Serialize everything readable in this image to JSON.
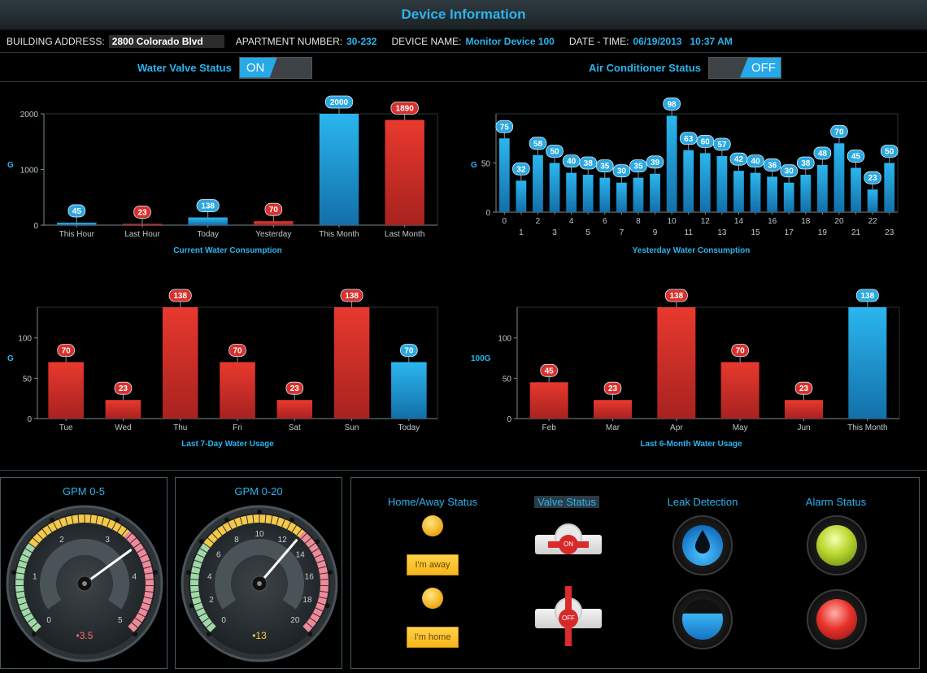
{
  "header": {
    "title": "Device Information"
  },
  "info": {
    "address_label": "BUILDING ADDRESS:",
    "address_value": "2800 Colorado Blvd",
    "apt_label": "APARTMENT NUMBER:",
    "apt_value": "30-232",
    "device_label": "DEVICE NAME:",
    "device_value": "Monitor Device 100",
    "datetime_label": "DATE - TIME:",
    "datetime_value": "06/19/2013   10:37 AM"
  },
  "toggles": {
    "water_valve_label": "Water Valve Status",
    "water_valve_value": "ON",
    "ac_label": "Air Conditioner Status",
    "ac_value": "OFF"
  },
  "colors": {
    "accent": "#2ab4ee",
    "blue_bar": "#1f9fd8",
    "red_bar": "#d8302c"
  },
  "chart_data": [
    {
      "id": "current",
      "type": "bar",
      "title": "Current Water Consumption",
      "ylabel": "G",
      "ylim": [
        0,
        2000
      ],
      "yticks": [
        0,
        1000,
        2000
      ],
      "categories": [
        "This Hour",
        "Last Hour",
        "Today",
        "Yesterday",
        "This Month",
        "Last Month"
      ],
      "values": [
        45,
        23,
        138,
        70,
        2000,
        1890
      ],
      "colors": [
        "blue",
        "red",
        "blue",
        "red",
        "blue",
        "red"
      ]
    },
    {
      "id": "yesterday",
      "type": "bar",
      "title": "Yesterday Water Consumption",
      "ylabel": "G",
      "ylim": [
        0,
        100
      ],
      "yticks": [
        0,
        50
      ],
      "categories": [
        "0",
        "1",
        "2",
        "3",
        "4",
        "5",
        "6",
        "7",
        "8",
        "9",
        "10",
        "11",
        "12",
        "13",
        "14",
        "15",
        "16",
        "17",
        "18",
        "19",
        "20",
        "21",
        "22",
        "23"
      ],
      "values": [
        75,
        32,
        58,
        50,
        40,
        38,
        35,
        30,
        35,
        39,
        98,
        63,
        60,
        57,
        42,
        40,
        36,
        30,
        38,
        48,
        70,
        45,
        23,
        50
      ],
      "colors": [
        "blue"
      ]
    },
    {
      "id": "week",
      "type": "bar",
      "title": "Last 7-Day Water Usage",
      "ylabel": "G",
      "ylim": [
        0,
        138
      ],
      "yticks": [
        0,
        50,
        100
      ],
      "categories": [
        "Tue",
        "Wed",
        "Thu",
        "Fri",
        "Sat",
        "Sun",
        "Today"
      ],
      "values": [
        70,
        23,
        138,
        70,
        23,
        138,
        70
      ],
      "colors": [
        "red",
        "red",
        "red",
        "red",
        "red",
        "red",
        "blue"
      ]
    },
    {
      "id": "months",
      "type": "bar",
      "title": "Last 6-Month Water Usage",
      "ylabel": "100G",
      "ylim": [
        0,
        138
      ],
      "yticks": [
        0,
        50,
        100
      ],
      "categories": [
        "Feb",
        "Mar",
        "Apr",
        "May",
        "Jun",
        "This Month"
      ],
      "values": [
        45,
        23,
        138,
        70,
        23,
        138
      ],
      "colors": [
        "red",
        "red",
        "red",
        "red",
        "red",
        "blue"
      ]
    }
  ],
  "gauges": [
    {
      "title": "GPM 0-5",
      "min": 0,
      "max": 5,
      "ticks": [
        "0",
        "1",
        "2",
        "3",
        "4",
        "5"
      ],
      "value": 3.5,
      "readout": "•3.5",
      "readout_color": "#ff6b6b"
    },
    {
      "title": "GPM 0-20",
      "min": 0,
      "max": 20,
      "ticks": [
        "0",
        "2",
        "4",
        "6",
        "8",
        "10",
        "12",
        "14",
        "16",
        "18",
        "20"
      ],
      "value": 13,
      "readout": "•13",
      "readout_color": "#ffcf3a"
    }
  ],
  "status": {
    "home_away_title": "Home/Away Status",
    "away_sign": "I'm away",
    "home_sign": "I'm home",
    "valve_title": "Valve Status",
    "valve_on": "ON",
    "valve_off": "OFF",
    "leak_title": "Leak Detection",
    "alarm_title": "Alarm Status"
  }
}
